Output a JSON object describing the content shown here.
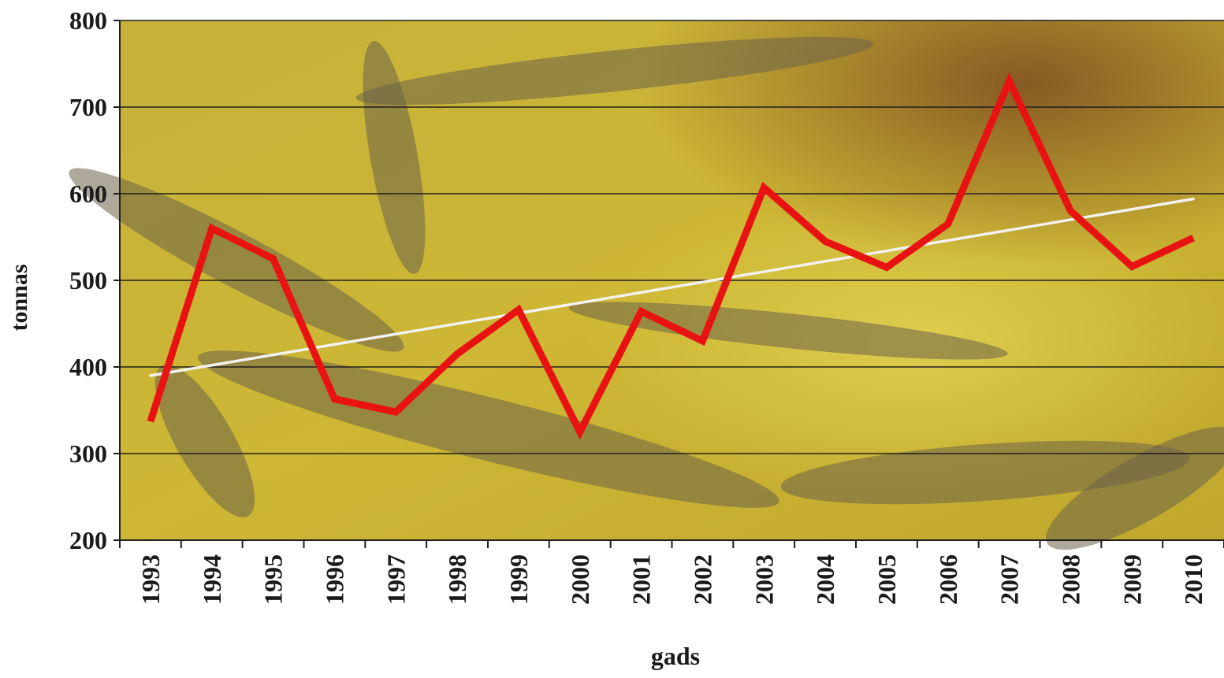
{
  "chart_data": {
    "type": "line",
    "title": "",
    "xlabel": "gads",
    "ylabel": "tonnas",
    "ylim": [
      200,
      800
    ],
    "yticks": [
      200,
      300,
      400,
      500,
      600,
      700,
      800
    ],
    "categories": [
      "1993",
      "1994",
      "1995",
      "1996",
      "1997",
      "1998",
      "1999",
      "2000",
      "2001",
      "2002",
      "2003",
      "2004",
      "2005",
      "2006",
      "2007",
      "2008",
      "2009",
      "2010"
    ],
    "series": [
      {
        "values": [
          337,
          560,
          525,
          363,
          348,
          415,
          466,
          325,
          464,
          430,
          607,
          545,
          515,
          565,
          730,
          580,
          516,
          549
        ],
        "color": "#e81212"
      }
    ],
    "trendline": {
      "start_value": 390,
      "end_value": 594,
      "color": "#f2f2f2"
    },
    "grid": true,
    "legend": "none",
    "background": "photo of sturgeon in yellow water",
    "background_color": "#c8b232"
  }
}
